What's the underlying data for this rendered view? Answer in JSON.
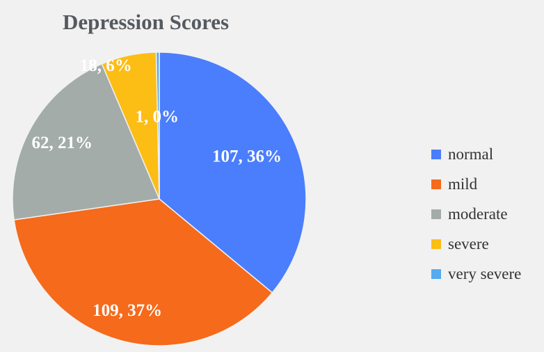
{
  "chart_data": {
    "type": "pie",
    "title": "Depression Scores",
    "categories": [
      "normal",
      "mild",
      "moderate",
      "severe",
      "very severe"
    ],
    "values": [
      107,
      109,
      62,
      18,
      1
    ],
    "percent_labels": [
      "36%",
      "37%",
      "21%",
      "6%",
      "0%"
    ],
    "data_labels": [
      "107, 36%",
      "109, 37%",
      "62, 21%",
      "18, 6%",
      "1, 0%"
    ],
    "colors": [
      "#4a7efc",
      "#f56a1b",
      "#a3aca8",
      "#fcbd14",
      "#56aaf0"
    ],
    "legend_position": "right",
    "start_angle": "12 o'clock",
    "direction": "clockwise"
  }
}
